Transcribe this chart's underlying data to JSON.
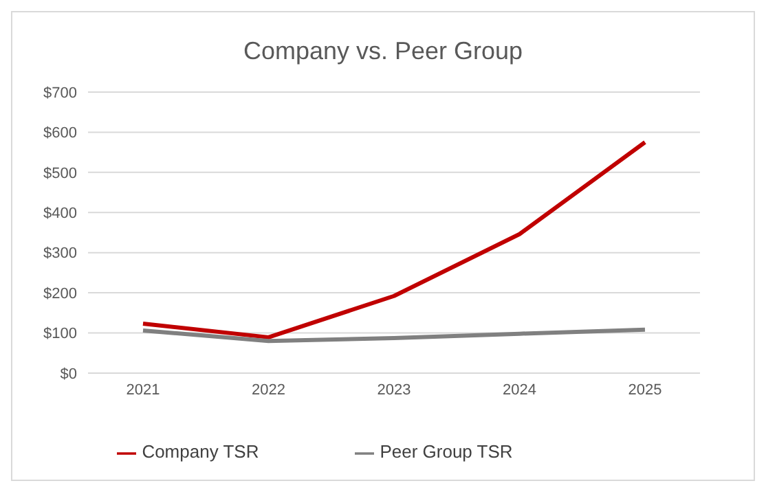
{
  "chart_data": {
    "type": "line",
    "title": "Company vs. Peer Group",
    "categories": [
      "2021",
      "2022",
      "2023",
      "2024",
      "2025"
    ],
    "series": [
      {
        "name": "Company TSR",
        "color": "#c00000",
        "values": [
          123,
          89,
          192,
          346,
          575
        ]
      },
      {
        "name": "Peer Group TSR",
        "color": "#808080",
        "values": [
          106,
          80,
          87,
          98,
          108
        ]
      }
    ],
    "ylim": [
      0,
      700
    ],
    "yticks": [
      {
        "value": 0,
        "label": "$0"
      },
      {
        "value": 100,
        "label": "$100"
      },
      {
        "value": 200,
        "label": "$200"
      },
      {
        "value": 300,
        "label": "$300"
      },
      {
        "value": 400,
        "label": "$400"
      },
      {
        "value": 500,
        "label": "$500"
      },
      {
        "value": 600,
        "label": "$600"
      },
      {
        "value": 700,
        "label": "$700"
      }
    ],
    "grid": "y",
    "legend": "bottom",
    "marker": "none",
    "line_style": "solid"
  }
}
